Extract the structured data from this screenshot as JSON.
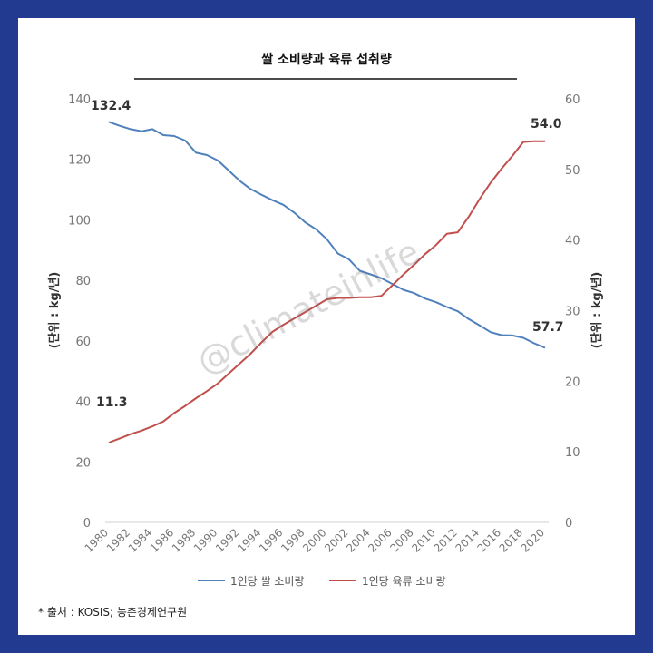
{
  "footer": {
    "source": "* 출처 : KOSIS; 농촌경제연구원"
  },
  "watermark": "@climateinlife",
  "chart_data": {
    "type": "line",
    "title": "쌀 소비량과 육류 섭취량",
    "ylabel": "(단위 : kg/년)",
    "y2label": "(단위 : kg/년)",
    "ylim": [
      0,
      140
    ],
    "y2lim": [
      0,
      60
    ],
    "yticks": [
      "0",
      "20",
      "40",
      "60",
      "80",
      "100",
      "120",
      "140"
    ],
    "y2ticks": [
      "0",
      "10",
      "20",
      "30",
      "40",
      "50",
      "60"
    ],
    "x": [
      1980,
      1981,
      1982,
      1983,
      1984,
      1985,
      1986,
      1987,
      1988,
      1989,
      1990,
      1991,
      1992,
      1993,
      1994,
      1995,
      1996,
      1997,
      1998,
      1999,
      2000,
      2001,
      2002,
      2003,
      2004,
      2005,
      2006,
      2007,
      2008,
      2009,
      2010,
      2011,
      2012,
      2013,
      2014,
      2015,
      2016,
      2017,
      2018,
      2019,
      2020
    ],
    "xticks": [
      "1980",
      "1982",
      "1984",
      "1986",
      "1988",
      "1990",
      "1992",
      "1994",
      "1996",
      "1998",
      "2000",
      "2002",
      "2004",
      "2006",
      "2008",
      "2010",
      "2012",
      "2014",
      "2016",
      "2018",
      "2020"
    ],
    "legend_position": "bottom",
    "grid": false,
    "series": [
      {
        "name": "1인당 쌀 소비량",
        "axis": "left",
        "color": "#4f81bd",
        "values": [
          132.4,
          131.1,
          130.0,
          129.3,
          130.0,
          128.0,
          127.7,
          126.2,
          122.2,
          121.4,
          119.6,
          116.3,
          112.9,
          110.2,
          108.3,
          106.5,
          105.0,
          102.4,
          99.2,
          96.9,
          93.6,
          88.9,
          87.0,
          83.2,
          82.0,
          80.7,
          78.8,
          76.9,
          75.8,
          74.0,
          72.8,
          71.2,
          69.8,
          67.2,
          65.1,
          62.9,
          61.9,
          61.8,
          61.0,
          59.2,
          57.7
        ],
        "labels": {
          "first": "132.4",
          "last": "57.7"
        }
      },
      {
        "name": "1인당 육류 소비량",
        "axis": "right",
        "color": "#c0504d",
        "values": [
          11.3,
          11.9,
          12.5,
          13.0,
          13.6,
          14.3,
          15.5,
          16.5,
          17.6,
          18.6,
          19.7,
          21.1,
          22.5,
          23.9,
          25.5,
          27.0,
          28.0,
          28.9,
          29.8,
          30.7,
          31.6,
          31.8,
          31.8,
          31.9,
          31.9,
          32.1,
          33.6,
          35.1,
          36.5,
          38.0,
          39.3,
          40.9,
          41.1,
          43.3,
          45.8,
          48.1,
          50.1,
          51.9,
          53.9,
          54.0,
          54.0
        ],
        "labels": {
          "first": "11.3",
          "last": "54.0"
        }
      }
    ]
  }
}
